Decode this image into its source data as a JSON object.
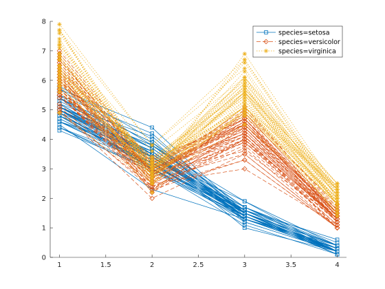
{
  "chart_data": {
    "type": "line",
    "title": "",
    "xlabel": "",
    "ylabel": "",
    "xlim": [
      0.9,
      4.1
    ],
    "ylim": [
      0,
      8
    ],
    "xticks": [
      1,
      1.5,
      2,
      2.5,
      3,
      3.5,
      4
    ],
    "xtick_labels": [
      "1",
      "1.5",
      "2",
      "2.5",
      "3",
      "3.5",
      "4"
    ],
    "yticks": [
      0,
      1,
      2,
      3,
      4,
      5,
      6,
      7,
      8
    ],
    "ytick_labels": [
      "0",
      "1",
      "2",
      "3",
      "4",
      "5",
      "6",
      "7",
      "8"
    ],
    "x": [
      1,
      2,
      3,
      4
    ],
    "legend_position": "top-right",
    "series": [
      {
        "name": "species=setosa",
        "color": "#0072BD",
        "line_style": "solid",
        "marker": "square",
        "observations": [
          [
            5.1,
            3.5,
            1.4,
            0.2
          ],
          [
            4.9,
            3.0,
            1.4,
            0.2
          ],
          [
            4.7,
            3.2,
            1.3,
            0.2
          ],
          [
            4.6,
            3.1,
            1.5,
            0.2
          ],
          [
            5.0,
            3.6,
            1.4,
            0.2
          ],
          [
            5.4,
            3.9,
            1.7,
            0.4
          ],
          [
            4.6,
            3.4,
            1.4,
            0.3
          ],
          [
            5.0,
            3.4,
            1.5,
            0.2
          ],
          [
            4.4,
            2.9,
            1.4,
            0.2
          ],
          [
            4.9,
            3.1,
            1.5,
            0.1
          ],
          [
            5.4,
            3.7,
            1.5,
            0.2
          ],
          [
            4.8,
            3.4,
            1.6,
            0.2
          ],
          [
            4.8,
            3.0,
            1.4,
            0.1
          ],
          [
            4.3,
            3.0,
            1.1,
            0.1
          ],
          [
            5.8,
            4.0,
            1.2,
            0.2
          ],
          [
            5.7,
            4.4,
            1.5,
            0.4
          ],
          [
            5.4,
            3.9,
            1.3,
            0.4
          ],
          [
            5.1,
            3.5,
            1.4,
            0.3
          ],
          [
            5.7,
            3.8,
            1.7,
            0.3
          ],
          [
            5.1,
            3.8,
            1.5,
            0.3
          ],
          [
            5.4,
            3.4,
            1.7,
            0.2
          ],
          [
            5.1,
            3.7,
            1.5,
            0.4
          ],
          [
            4.6,
            3.6,
            1.0,
            0.2
          ],
          [
            5.1,
            3.3,
            1.7,
            0.5
          ],
          [
            4.8,
            3.4,
            1.9,
            0.2
          ],
          [
            5.0,
            3.0,
            1.6,
            0.2
          ],
          [
            5.0,
            3.4,
            1.6,
            0.4
          ],
          [
            5.2,
            3.5,
            1.5,
            0.2
          ],
          [
            5.2,
            3.4,
            1.4,
            0.2
          ],
          [
            4.7,
            3.2,
            1.6,
            0.2
          ],
          [
            4.8,
            3.1,
            1.6,
            0.2
          ],
          [
            5.4,
            3.4,
            1.5,
            0.4
          ],
          [
            5.2,
            4.1,
            1.5,
            0.1
          ],
          [
            5.5,
            4.2,
            1.4,
            0.2
          ],
          [
            4.9,
            3.1,
            1.5,
            0.2
          ],
          [
            5.0,
            3.2,
            1.2,
            0.2
          ],
          [
            5.5,
            3.5,
            1.3,
            0.2
          ],
          [
            4.9,
            3.6,
            1.4,
            0.1
          ],
          [
            4.4,
            3.0,
            1.3,
            0.2
          ],
          [
            5.1,
            3.4,
            1.5,
            0.2
          ],
          [
            5.0,
            3.5,
            1.3,
            0.3
          ],
          [
            4.5,
            2.3,
            1.3,
            0.3
          ],
          [
            4.4,
            3.2,
            1.3,
            0.2
          ],
          [
            5.0,
            3.5,
            1.6,
            0.6
          ],
          [
            5.1,
            3.8,
            1.9,
            0.4
          ],
          [
            4.8,
            3.0,
            1.4,
            0.3
          ],
          [
            5.1,
            3.8,
            1.6,
            0.2
          ],
          [
            4.6,
            3.2,
            1.4,
            0.2
          ],
          [
            5.3,
            3.7,
            1.5,
            0.2
          ],
          [
            5.0,
            3.3,
            1.4,
            0.2
          ]
        ]
      },
      {
        "name": "species=versicolor",
        "color": "#D95319",
        "line_style": "dashed",
        "marker": "diamond",
        "observations": [
          [
            7.0,
            3.2,
            4.7,
            1.4
          ],
          [
            6.4,
            3.2,
            4.5,
            1.5
          ],
          [
            6.9,
            3.1,
            4.9,
            1.5
          ],
          [
            5.5,
            2.3,
            4.0,
            1.3
          ],
          [
            6.5,
            2.8,
            4.6,
            1.5
          ],
          [
            5.7,
            2.8,
            4.5,
            1.3
          ],
          [
            6.3,
            3.3,
            4.7,
            1.6
          ],
          [
            4.9,
            2.4,
            3.3,
            1.0
          ],
          [
            6.6,
            2.9,
            4.6,
            1.3
          ],
          [
            5.2,
            2.7,
            3.9,
            1.4
          ],
          [
            5.0,
            2.0,
            3.5,
            1.0
          ],
          [
            5.9,
            3.0,
            4.2,
            1.5
          ],
          [
            6.0,
            2.2,
            4.0,
            1.0
          ],
          [
            6.1,
            2.9,
            4.7,
            1.4
          ],
          [
            5.6,
            2.9,
            3.6,
            1.3
          ],
          [
            6.7,
            3.1,
            4.4,
            1.4
          ],
          [
            5.6,
            3.0,
            4.5,
            1.5
          ],
          [
            5.8,
            2.7,
            4.1,
            1.0
          ],
          [
            6.2,
            2.2,
            4.5,
            1.5
          ],
          [
            5.6,
            2.5,
            3.9,
            1.1
          ],
          [
            5.9,
            3.2,
            4.8,
            1.8
          ],
          [
            6.1,
            2.8,
            4.0,
            1.3
          ],
          [
            6.3,
            2.5,
            4.9,
            1.5
          ],
          [
            6.1,
            2.8,
            4.7,
            1.2
          ],
          [
            6.4,
            2.9,
            4.3,
            1.3
          ],
          [
            6.6,
            3.0,
            4.4,
            1.4
          ],
          [
            6.8,
            2.8,
            4.8,
            1.4
          ],
          [
            6.7,
            3.0,
            5.0,
            1.7
          ],
          [
            6.0,
            2.9,
            4.5,
            1.5
          ],
          [
            5.7,
            2.6,
            3.5,
            1.0
          ],
          [
            5.5,
            2.4,
            3.8,
            1.1
          ],
          [
            5.5,
            2.4,
            3.7,
            1.0
          ],
          [
            5.8,
            2.7,
            3.9,
            1.2
          ],
          [
            6.0,
            2.7,
            5.1,
            1.6
          ],
          [
            5.4,
            3.0,
            4.5,
            1.5
          ],
          [
            6.0,
            3.4,
            4.5,
            1.6
          ],
          [
            6.7,
            3.1,
            4.7,
            1.5
          ],
          [
            6.3,
            2.3,
            4.4,
            1.3
          ],
          [
            5.6,
            3.0,
            4.1,
            1.3
          ],
          [
            5.5,
            2.5,
            4.0,
            1.3
          ],
          [
            5.5,
            2.6,
            4.4,
            1.2
          ],
          [
            6.1,
            3.0,
            4.6,
            1.4
          ],
          [
            5.8,
            2.6,
            4.0,
            1.2
          ],
          [
            5.0,
            2.3,
            3.3,
            1.0
          ],
          [
            5.6,
            2.7,
            4.2,
            1.3
          ],
          [
            5.7,
            3.0,
            4.2,
            1.2
          ],
          [
            5.7,
            2.9,
            4.2,
            1.3
          ],
          [
            6.2,
            2.9,
            4.3,
            1.3
          ],
          [
            5.1,
            2.5,
            3.0,
            1.1
          ],
          [
            5.7,
            2.8,
            4.1,
            1.3
          ]
        ]
      },
      {
        "name": "species=virginica",
        "color": "#EDB120",
        "line_style": "dotted",
        "marker": "asterisk",
        "observations": [
          [
            6.3,
            3.3,
            6.0,
            2.5
          ],
          [
            5.8,
            2.7,
            5.1,
            1.9
          ],
          [
            7.1,
            3.0,
            5.9,
            2.1
          ],
          [
            6.3,
            2.9,
            5.6,
            1.8
          ],
          [
            6.5,
            3.0,
            5.8,
            2.2
          ],
          [
            7.6,
            3.0,
            6.6,
            2.1
          ],
          [
            4.9,
            2.5,
            4.5,
            1.7
          ],
          [
            7.3,
            2.9,
            6.3,
            1.8
          ],
          [
            6.7,
            2.5,
            5.8,
            1.8
          ],
          [
            7.2,
            3.6,
            6.1,
            2.5
          ],
          [
            6.5,
            3.2,
            5.1,
            2.0
          ],
          [
            6.4,
            2.7,
            5.3,
            1.9
          ],
          [
            6.8,
            3.0,
            5.5,
            2.1
          ],
          [
            5.7,
            2.5,
            5.0,
            2.0
          ],
          [
            5.8,
            2.8,
            5.1,
            2.4
          ],
          [
            6.4,
            3.2,
            5.3,
            2.3
          ],
          [
            6.5,
            3.0,
            5.5,
            1.8
          ],
          [
            7.7,
            3.8,
            6.7,
            2.2
          ],
          [
            7.7,
            2.6,
            6.9,
            2.3
          ],
          [
            6.0,
            2.2,
            5.0,
            1.5
          ],
          [
            6.9,
            3.2,
            5.7,
            2.3
          ],
          [
            5.6,
            2.8,
            4.9,
            2.0
          ],
          [
            7.7,
            2.8,
            6.7,
            2.0
          ],
          [
            6.3,
            2.7,
            4.9,
            1.8
          ],
          [
            6.7,
            3.3,
            5.7,
            2.1
          ],
          [
            7.2,
            3.2,
            6.0,
            1.8
          ],
          [
            6.2,
            2.8,
            4.8,
            1.8
          ],
          [
            6.1,
            3.0,
            4.9,
            1.8
          ],
          [
            6.4,
            2.8,
            5.6,
            2.1
          ],
          [
            7.2,
            3.0,
            5.8,
            1.6
          ],
          [
            7.4,
            2.8,
            6.1,
            1.9
          ],
          [
            7.9,
            3.8,
            6.4,
            2.0
          ],
          [
            6.4,
            2.8,
            5.6,
            2.2
          ],
          [
            6.3,
            2.8,
            5.1,
            1.5
          ],
          [
            6.1,
            2.6,
            5.6,
            1.4
          ],
          [
            7.7,
            3.0,
            6.1,
            2.3
          ],
          [
            6.3,
            3.4,
            5.6,
            2.4
          ],
          [
            6.4,
            3.1,
            5.5,
            1.8
          ],
          [
            6.0,
            3.0,
            4.8,
            1.8
          ],
          [
            6.9,
            3.1,
            5.4,
            2.1
          ],
          [
            6.7,
            3.1,
            5.6,
            2.4
          ],
          [
            6.9,
            3.1,
            5.1,
            2.3
          ],
          [
            5.8,
            2.7,
            5.1,
            1.9
          ],
          [
            6.8,
            3.2,
            5.9,
            2.3
          ],
          [
            6.7,
            3.3,
            5.7,
            2.5
          ],
          [
            6.7,
            3.0,
            5.2,
            2.3
          ],
          [
            6.3,
            2.5,
            5.0,
            1.9
          ],
          [
            6.5,
            3.0,
            5.2,
            2.0
          ],
          [
            6.2,
            3.4,
            5.4,
            2.3
          ],
          [
            5.9,
            3.0,
            5.1,
            1.8
          ]
        ]
      }
    ]
  }
}
